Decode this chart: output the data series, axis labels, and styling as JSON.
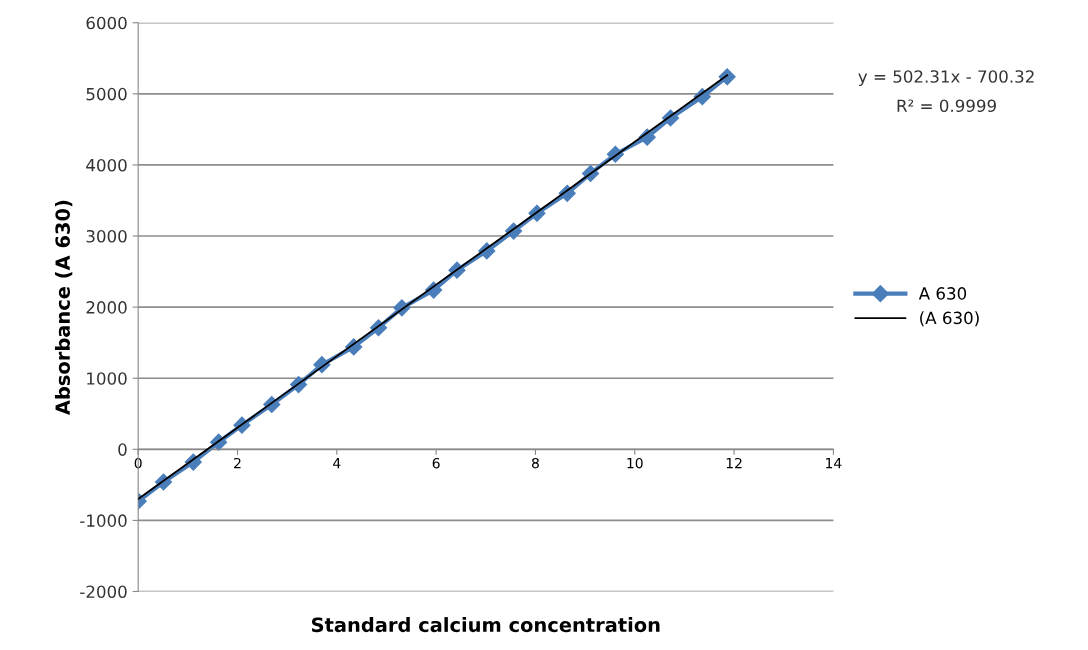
{
  "chart_data": {
    "type": "line",
    "xlabel": "Standard calcium concentration",
    "ylabel": "Absorbance (A 630)",
    "xlim": [
      0,
      14
    ],
    "xticks": [
      0,
      2,
      4,
      6,
      8,
      10,
      12,
      14
    ],
    "ylim": [
      -2000,
      6000
    ],
    "yticks": [
      -2000,
      -1000,
      0,
      1000,
      2000,
      3000,
      4000,
      5000,
      6000
    ],
    "grid": "y",
    "legend": "right",
    "marker": "diamond",
    "line_style": "solid",
    "annotations": [
      "y = 502.31x - 700.32",
      "R² = 0.9999"
    ],
    "series": [
      {
        "name": "A 630",
        "color": "#4a7ebb",
        "x": [
          0,
          0.51,
          1.11,
          1.62,
          2.09,
          2.69,
          3.23,
          3.7,
          4.34,
          4.84,
          5.31,
          5.95,
          6.42,
          7.02,
          7.56,
          8.03,
          8.64,
          9.11,
          9.61,
          10.25,
          10.72,
          11.36,
          11.86
        ],
        "values": [
          -730,
          -460,
          -180,
          100,
          340,
          630,
          910,
          1190,
          1440,
          1710,
          1990,
          2240,
          2520,
          2790,
          3070,
          3320,
          3600,
          3880,
          4150,
          4390,
          4660,
          4960,
          5240
        ]
      },
      {
        "name": "(A 630)",
        "color": "#000000",
        "type": "line",
        "marker": "none",
        "x": [
          0,
          11.86
        ],
        "values": [
          -700,
          5260
        ]
      }
    ]
  }
}
